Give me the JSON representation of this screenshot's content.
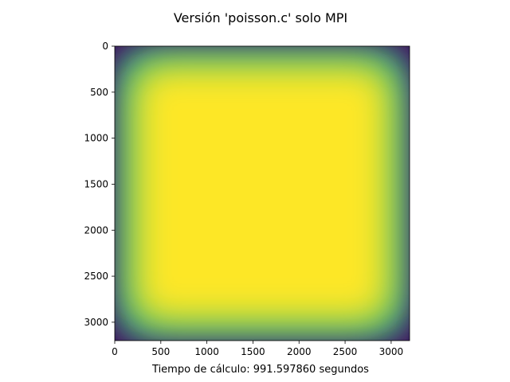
{
  "chart_data": {
    "type": "heatmap",
    "title": "Versión 'poisson.c' solo MPI",
    "xlabel": "Tiempo de cálculo: 991.597860 segundos",
    "ylabel": "",
    "colormap": "viridis",
    "xlim": [
      0,
      3200
    ],
    "ylim": [
      3200,
      0
    ],
    "y_axis_inverted": true,
    "grid": false,
    "x_ticks": [
      0,
      500,
      1000,
      1500,
      2000,
      2500,
      3000
    ],
    "y_ticks": [
      0,
      500,
      1000,
      1500,
      2000,
      2500,
      3000
    ],
    "x_tick_labels": [
      "0",
      "500",
      "1000",
      "1500",
      "2000",
      "2500",
      "3000"
    ],
    "y_tick_labels": [
      "0",
      "500",
      "1000",
      "1500",
      "2000",
      "2500",
      "3000"
    ],
    "grid_size": [
      3200,
      3200
    ],
    "edge_value": 0,
    "interior_value": 1,
    "boundary_transition_width": 320,
    "colors": {
      "low": "#440154",
      "mid_low": "#3b528b",
      "mid": "#21918c",
      "mid_high": "#5ec962",
      "high": "#fde725"
    }
  }
}
